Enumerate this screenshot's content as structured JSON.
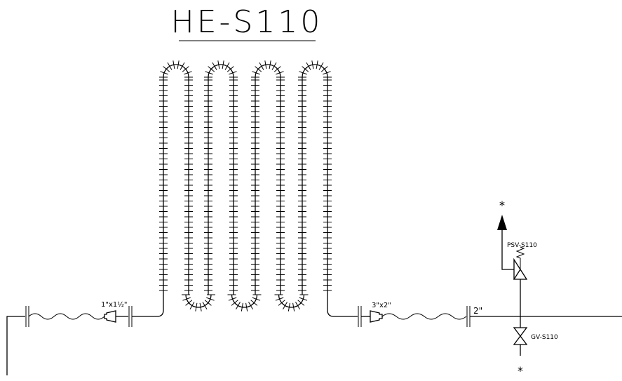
{
  "diagram": {
    "title": "HE-S110",
    "labels": {
      "reducer_inlet": "1\"x1½\"",
      "reducer_outlet": "3\"x2\"",
      "pipe_size": "2\"",
      "relief_valve": "PSV-S110",
      "gate_valve": "GV-S110",
      "vent_marker": "*",
      "drain_marker": "*"
    }
  }
}
